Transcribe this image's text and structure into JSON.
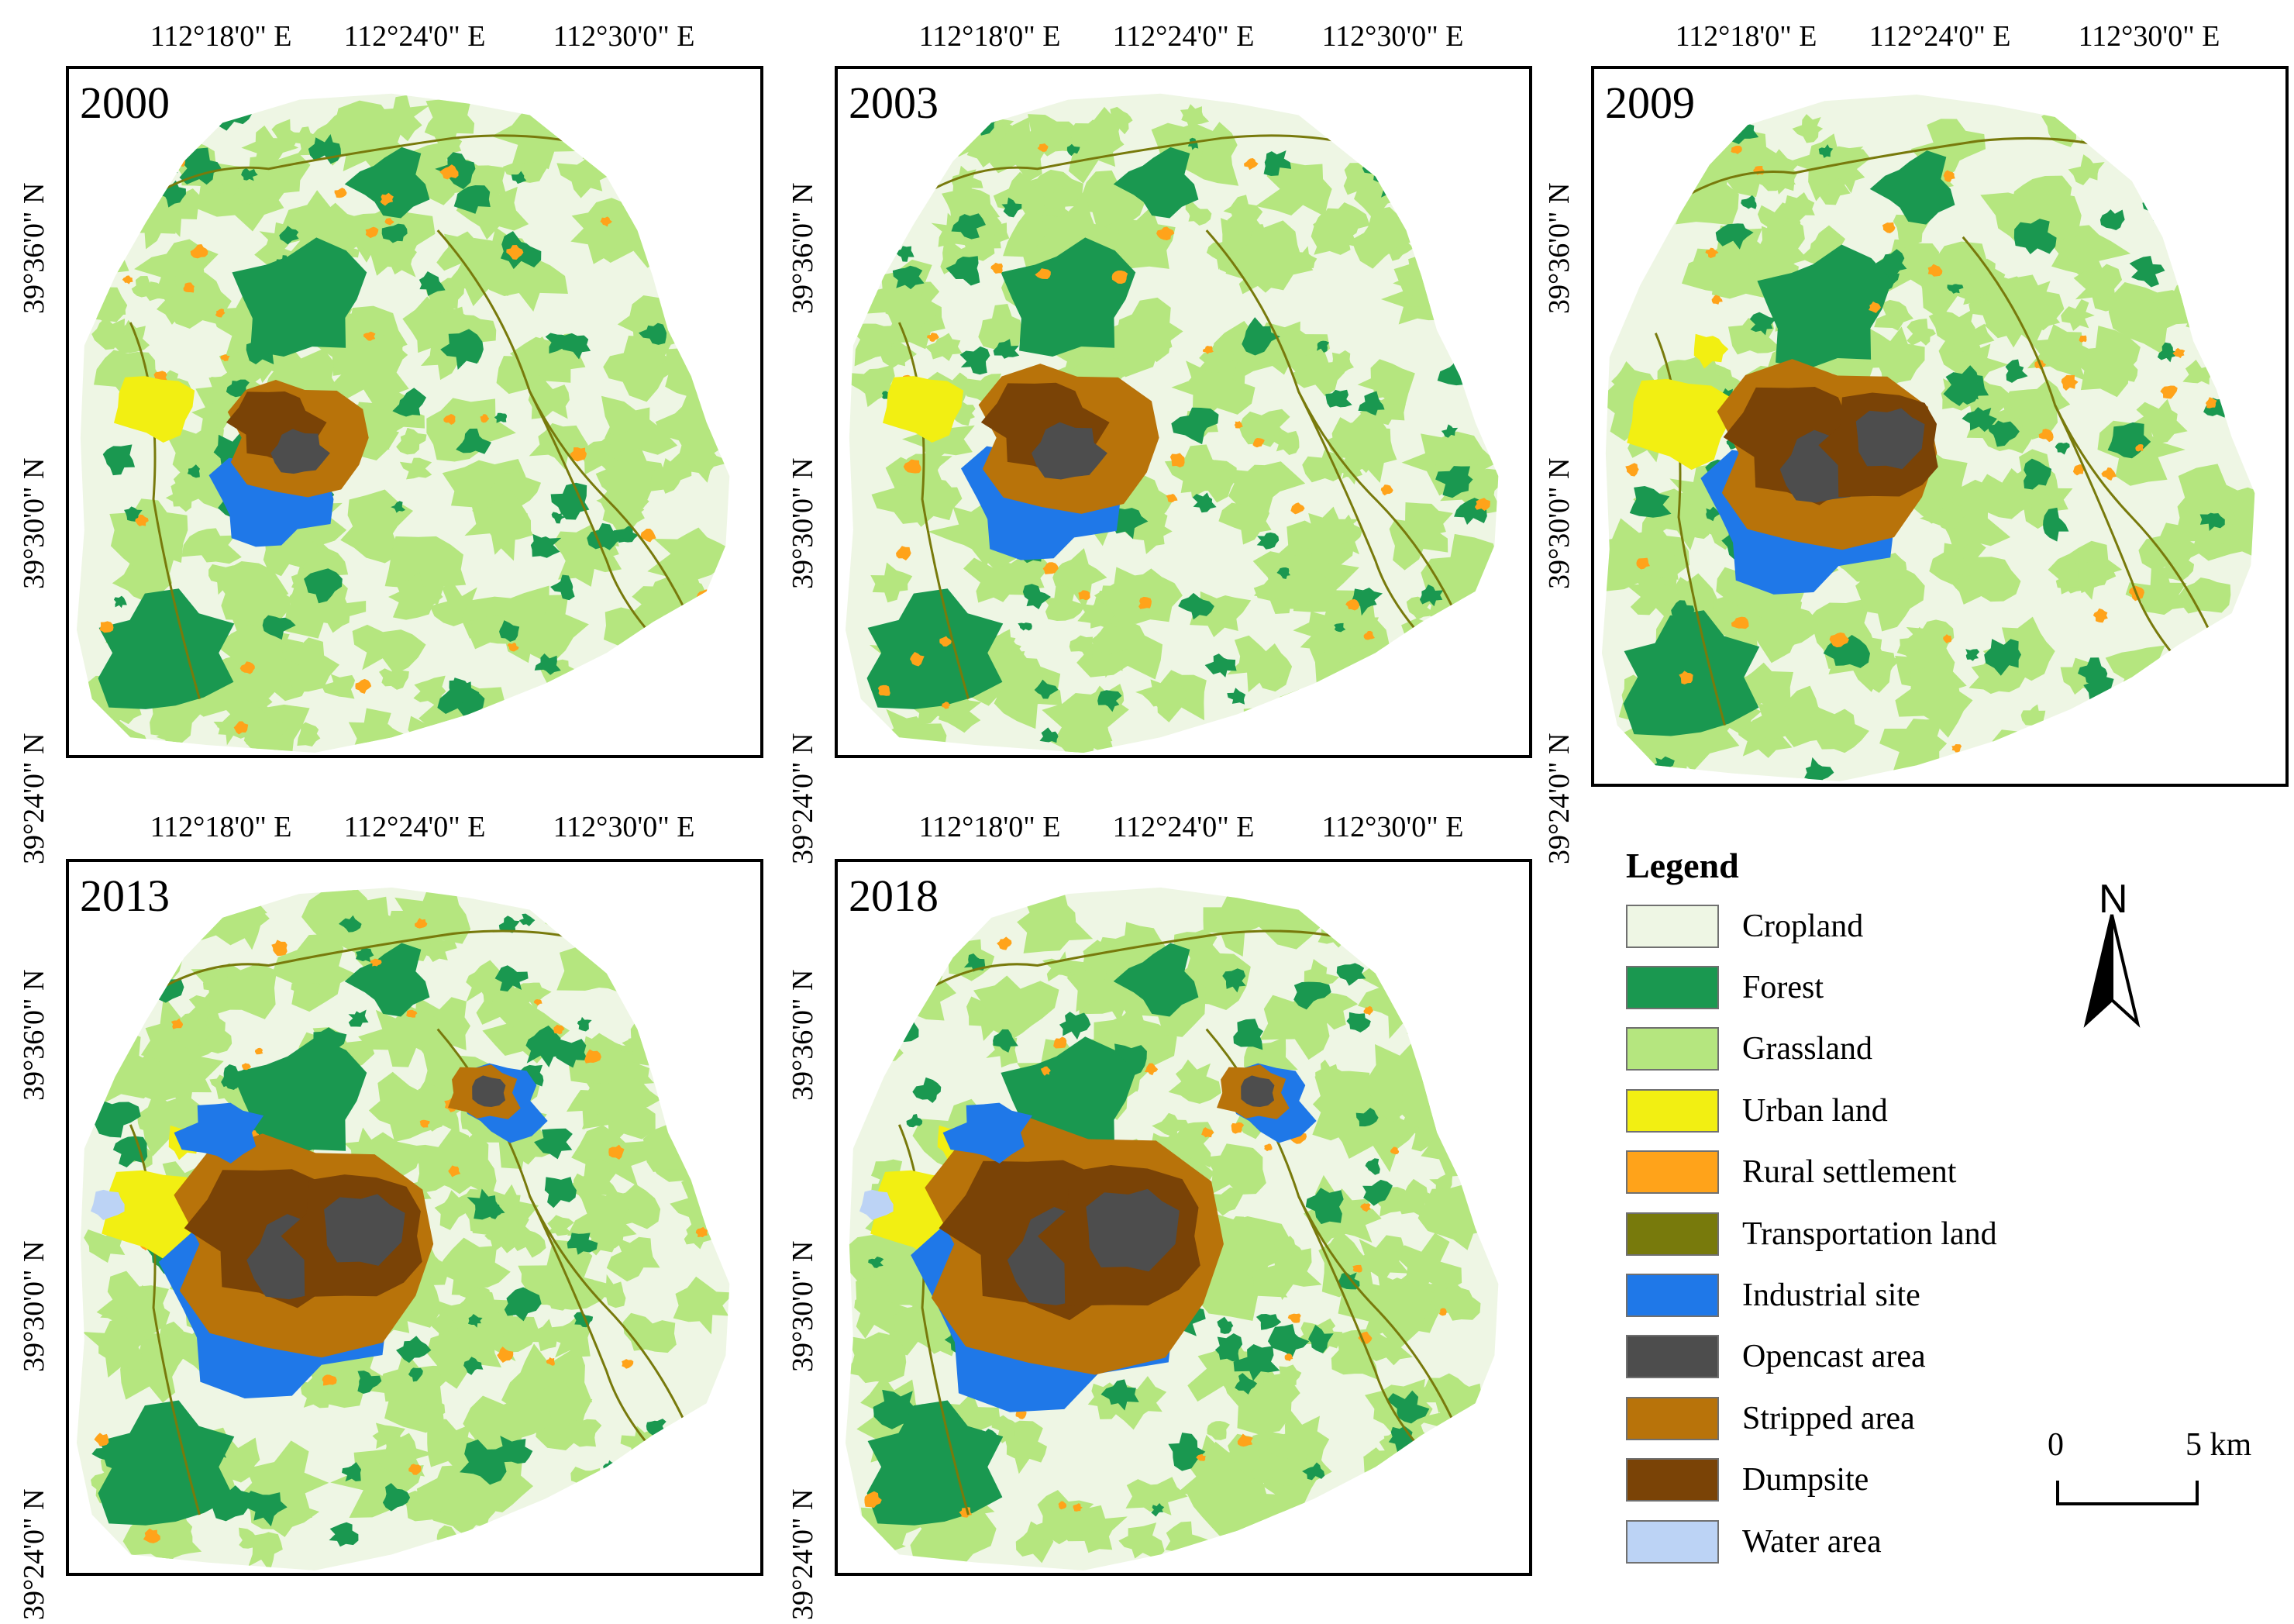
{
  "panels": [
    {
      "year": "2000",
      "variant": 0
    },
    {
      "year": "2003",
      "variant": 1
    },
    {
      "year": "2009",
      "variant": 2
    },
    {
      "year": "2013",
      "variant": 3
    },
    {
      "year": "2018",
      "variant": 4
    }
  ],
  "axes": {
    "longitudes": [
      "112°18'0\" E",
      "112°24'0\" E",
      "112°30'0\" E"
    ],
    "latitudes": [
      "39°36'0\" N",
      "39°30'0\" N",
      "39°24'0\" N"
    ]
  },
  "legend": {
    "title": "Legend",
    "items": [
      {
        "label": "Cropland",
        "color": "#eef6e4"
      },
      {
        "label": "Forest",
        "color": "#1a9850"
      },
      {
        "label": "Grassland",
        "color": "#b5e67f"
      },
      {
        "label": "Urban land",
        "color": "#f2ef12"
      },
      {
        "label": "Rural settlement",
        "color": "#ffa31a"
      },
      {
        "label": "Transportation land",
        "color": "#787a0c"
      },
      {
        "label": "Industrial site",
        "color": "#1f78e8"
      },
      {
        "label": "Opencast area",
        "color": "#4d4d4d"
      },
      {
        "label": "Stripped area",
        "color": "#b8730a"
      },
      {
        "label": "Dumpsite",
        "color": "#7a4306"
      },
      {
        "label": "Water area",
        "color": "#bcd3f5"
      }
    ]
  },
  "north_arrow": {
    "letter": "N",
    "icon": "north-arrow-icon"
  },
  "scale_bar": {
    "start": "0",
    "end": "5 km"
  }
}
